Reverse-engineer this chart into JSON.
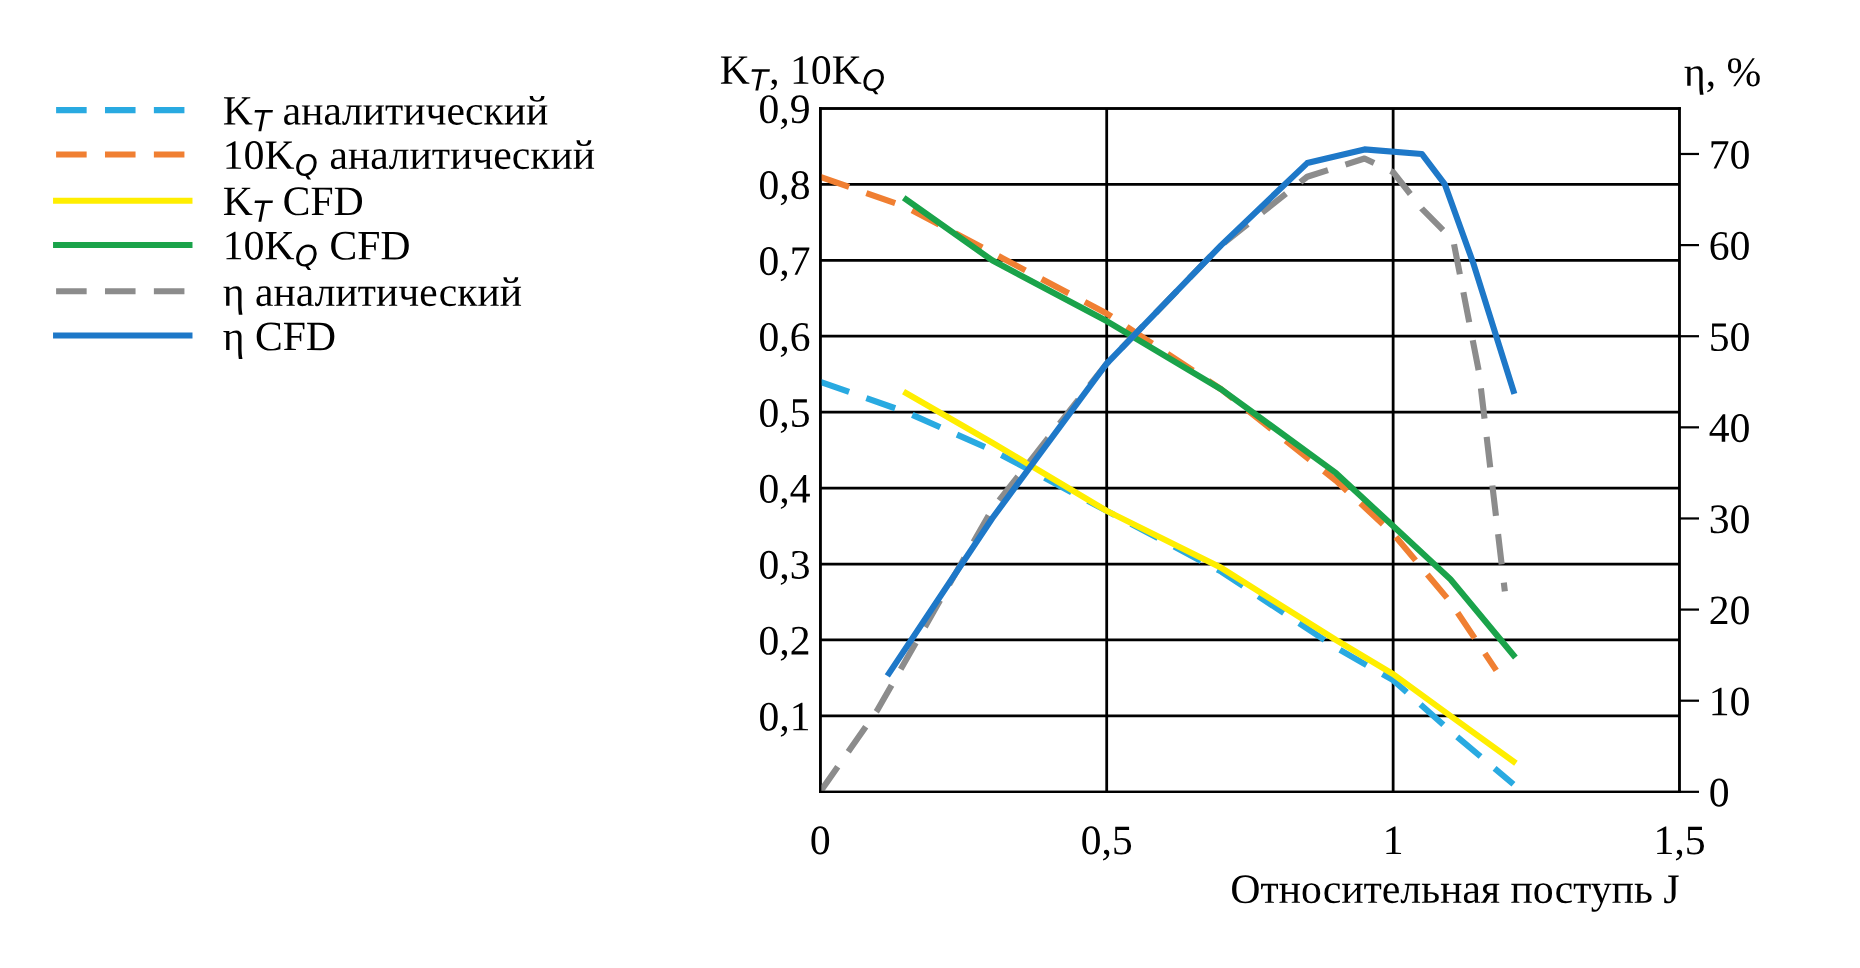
{
  "chart_data": {
    "type": "line",
    "ylabel": "K$_{T}$, 10K$_{Q}$",
    "y2label": "η, %",
    "xlabel": "Относительная поступь J",
    "xlim": [
      0,
      1.5
    ],
    "xticks": [
      0,
      {
        "value": 0.5,
        "label": "0,5"
      },
      1,
      {
        "value": 1.5,
        "label": "1,5"
      }
    ],
    "ylim": [
      0,
      0.9
    ],
    "yticks": [
      {
        "value": 0.1,
        "label": "0,1"
      },
      {
        "value": 0.2,
        "label": "0,2"
      },
      {
        "value": 0.3,
        "label": "0,3"
      },
      {
        "value": 0.4,
        "label": "0,4"
      },
      {
        "value": 0.5,
        "label": "0,5"
      },
      {
        "value": 0.6,
        "label": "0,6"
      },
      {
        "value": 0.7,
        "label": "0,7"
      },
      {
        "value": 0.8,
        "label": "0,8"
      },
      {
        "value": 0.9,
        "label": "0,9"
      }
    ],
    "y2lim": [
      0,
      75
    ],
    "y2ticks": [
      0,
      10,
      20,
      30,
      40,
      50,
      60,
      70
    ],
    "grid": true,
    "legend": "left",
    "series": [
      {
        "name": "K$_{T}$ аналитический",
        "color": "#29aae1",
        "line_style": "dashed",
        "x": [
          0,
          0.15,
          0.3,
          0.5,
          0.7,
          0.9,
          1.0,
          1.1,
          1.21
        ],
        "values": [
          0.54,
          0.5,
          0.45,
          0.37,
          0.29,
          0.19,
          0.147,
          0.08,
          0.01
        ]
      },
      {
        "name": "10K$_{Q}$ аналитический",
        "color": "#f07f32",
        "line_style": "dashed",
        "x": [
          0,
          0.15,
          0.3,
          0.5,
          0.7,
          0.9,
          1.0,
          1.1,
          1.18
        ],
        "values": [
          0.81,
          0.77,
          0.71,
          0.63,
          0.53,
          0.41,
          0.34,
          0.25,
          0.16
        ]
      },
      {
        "name": "K$_{T}$ CFD",
        "color": "#ffee00",
        "line_style": "solid",
        "x": [
          0.15,
          0.3,
          0.5,
          0.7,
          0.9,
          1.0,
          1.1,
          1.21
        ],
        "values": [
          0.525,
          0.46,
          0.37,
          0.295,
          0.2,
          0.155,
          0.1,
          0.04
        ]
      },
      {
        "name": "10K$_{Q}$ CFD",
        "color": "#1aa34a",
        "line_style": "solid",
        "x": [
          0.15,
          0.3,
          0.5,
          0.7,
          0.9,
          1.0,
          1.1,
          1.21
        ],
        "values": [
          0.78,
          0.7,
          0.62,
          0.53,
          0.42,
          0.35,
          0.28,
          0.18
        ]
      },
      {
        "name": "η аналитический",
        "color": "#8c8c8c",
        "line_style": "dashed",
        "axis": "y2",
        "x": [
          0,
          0.1,
          0.2,
          0.3,
          0.5,
          0.7,
          0.85,
          0.95,
          1.0,
          1.05,
          1.105,
          1.15,
          1.195
        ],
        "values": [
          0,
          9,
          20,
          31,
          47,
          60,
          67.5,
          69.5,
          68,
          64,
          60.5,
          46,
          22
        ]
      },
      {
        "name": "η CFD",
        "color": "#1e78c8",
        "line_style": "solid",
        "axis": "y2",
        "x": [
          0.12,
          0.3,
          0.5,
          0.7,
          0.85,
          0.95,
          1.05,
          1.09,
          1.14,
          1.21
        ],
        "values": [
          13,
          30,
          47,
          60,
          69,
          70.5,
          70,
          66.7,
          58,
          44
        ]
      }
    ]
  }
}
